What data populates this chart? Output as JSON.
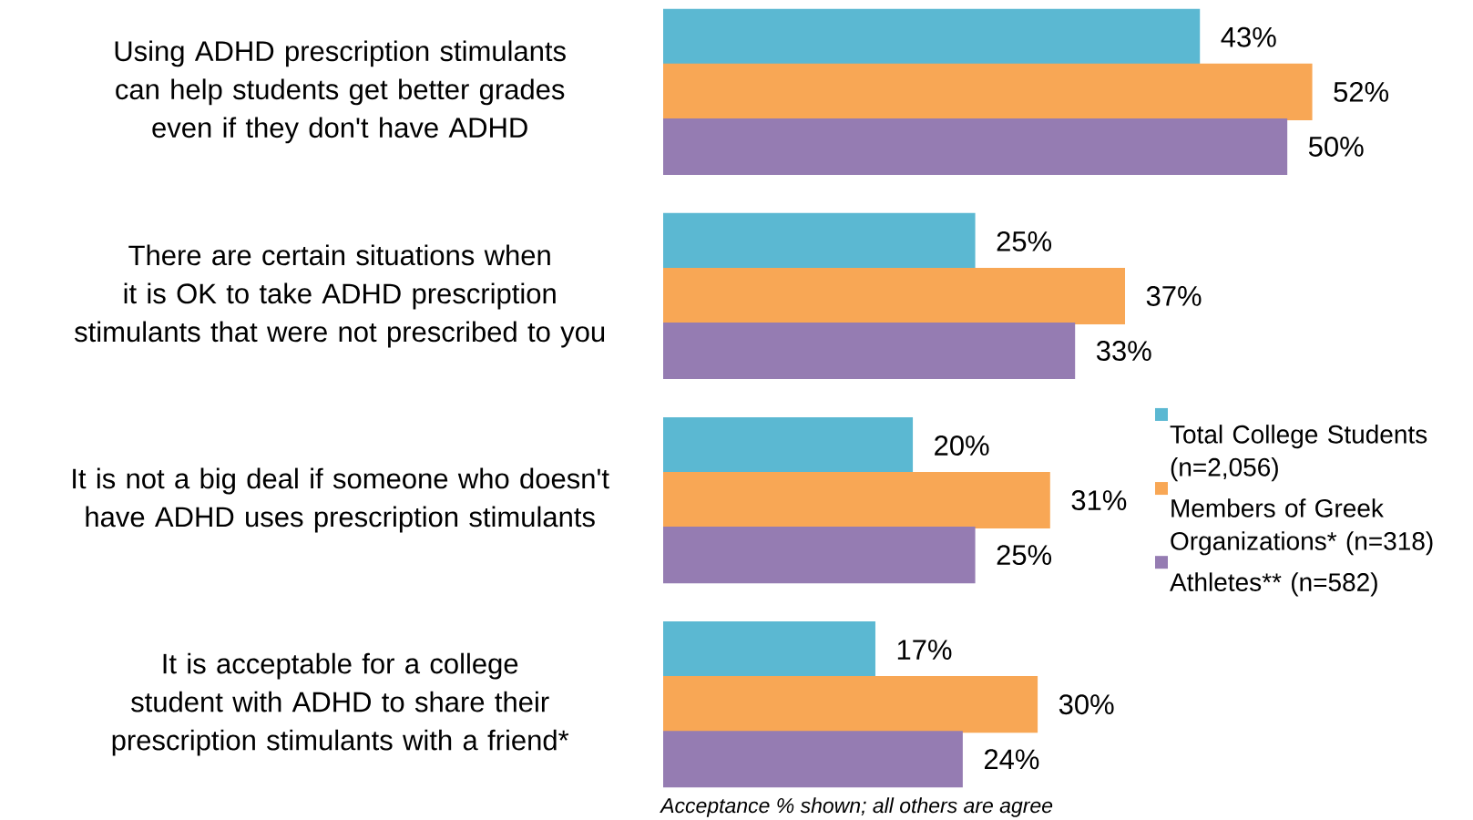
{
  "chart_data": {
    "type": "bar",
    "orientation": "horizontal",
    "legend": "right",
    "categories": [
      "Using ADHD prescription stimulants can help students get better grades even if they don't have ADHD",
      "There are certain situations when it is OK to take ADHD prescription stimulants that were not prescribed to you",
      "It is not a big deal if someone who doesn't have ADHD uses prescription stimulants",
      "It is acceptable for a college student with ADHD to share their prescription stimulants with a friend*"
    ],
    "series": [
      {
        "name": "Total College Students (n=2,056)",
        "color": "#5bb8d2",
        "values": [
          43,
          25,
          20,
          17
        ],
        "value_labels": [
          "43%",
          "25%",
          "20%",
          "17%"
        ]
      },
      {
        "name": "Members of Greek Organizations* (n=318)",
        "color": "#f8a755",
        "values": [
          52,
          37,
          31,
          30
        ],
        "value_labels": [
          "52%",
          "37%",
          "31%",
          "30%"
        ]
      },
      {
        "name": "Athletes** (n=582)",
        "color": "#957cb2",
        "values": [
          50,
          33,
          25,
          24
        ],
        "value_labels": [
          "50%",
          "33%",
          "25%",
          "24%"
        ]
      }
    ],
    "annotations": [
      "Acceptance % shown; all others are agree"
    ]
  }
}
